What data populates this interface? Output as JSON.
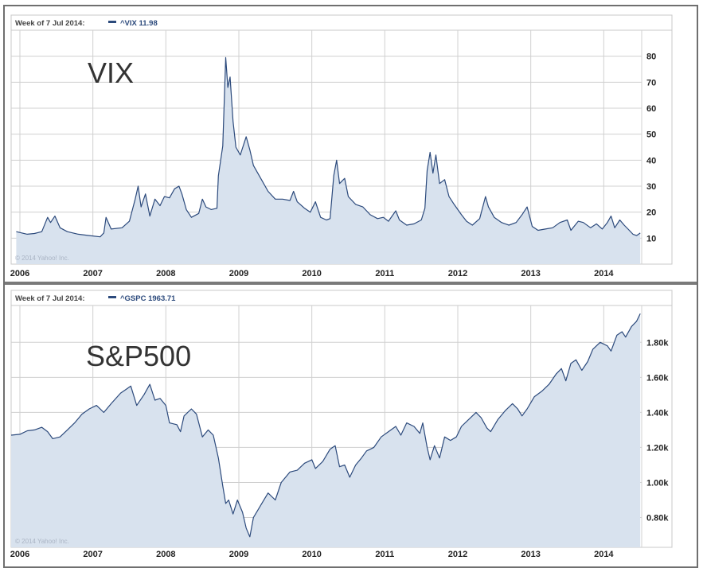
{
  "charts": [
    {
      "header_week": "Week of 7 Jul 2014:",
      "header_series": "^VIX 11.98",
      "overlay_label": "VIX",
      "copyright": "© 2014 Yahoo! Inc.",
      "x_labels": [
        "2006",
        "2007",
        "2008",
        "2009",
        "2010",
        "2011",
        "2012",
        "2013",
        "2014"
      ],
      "y_labels": [
        "80",
        "70",
        "60",
        "50",
        "40",
        "30",
        "20",
        "10"
      ]
    },
    {
      "header_week": "Week of 7 Jul 2014:",
      "header_series": "^GSPC 1963.71",
      "overlay_label": "S&P500",
      "copyright": "© 2014 Yahoo! Inc.",
      "x_labels": [
        "2006",
        "2007",
        "2008",
        "2009",
        "2010",
        "2011",
        "2012",
        "2013",
        "2014"
      ],
      "y_labels": [
        "1.80k",
        "1.60k",
        "1.40k",
        "1.20k",
        "1.00k",
        "0.80k"
      ]
    }
  ],
  "colors": {
    "line": "#2c4a7c",
    "fill": "#d8e2ee",
    "grid": "#d0d0d0"
  },
  "chart_data": [
    {
      "type": "area",
      "title": "",
      "series": [
        {
          "name": "^VIX",
          "values": [
            [
              2005.95,
              12.5
            ],
            [
              2006.1,
              11.5
            ],
            [
              2006.2,
              11.8
            ],
            [
              2006.3,
              12.5
            ],
            [
              2006.38,
              18
            ],
            [
              2006.42,
              16
            ],
            [
              2006.48,
              18.5
            ],
            [
              2006.55,
              14
            ],
            [
              2006.65,
              12.5
            ],
            [
              2006.8,
              11.5
            ],
            [
              2006.95,
              11
            ],
            [
              2007.1,
              10.5
            ],
            [
              2007.15,
              12
            ],
            [
              2007.18,
              18
            ],
            [
              2007.25,
              13.5
            ],
            [
              2007.4,
              14
            ],
            [
              2007.5,
              16.5
            ],
            [
              2007.58,
              25
            ],
            [
              2007.62,
              30
            ],
            [
              2007.66,
              22
            ],
            [
              2007.72,
              27
            ],
            [
              2007.78,
              18.5
            ],
            [
              2007.85,
              25
            ],
            [
              2007.92,
              22.5
            ],
            [
              2007.98,
              26
            ],
            [
              2008.05,
              25.5
            ],
            [
              2008.12,
              29
            ],
            [
              2008.18,
              30
            ],
            [
              2008.22,
              27
            ],
            [
              2008.28,
              21
            ],
            [
              2008.35,
              18
            ],
            [
              2008.45,
              19.5
            ],
            [
              2008.5,
              25
            ],
            [
              2008.55,
              22
            ],
            [
              2008.62,
              21
            ],
            [
              2008.7,
              21.5
            ],
            [
              2008.72,
              34
            ],
            [
              2008.78,
              45.5
            ],
            [
              2008.82,
              79.5
            ],
            [
              2008.85,
              68
            ],
            [
              2008.88,
              72
            ],
            [
              2008.92,
              55
            ],
            [
              2008.96,
              45
            ],
            [
              2009.02,
              42
            ],
            [
              2009.1,
              49
            ],
            [
              2009.15,
              44
            ],
            [
              2009.2,
              38
            ],
            [
              2009.3,
              33
            ],
            [
              2009.4,
              28
            ],
            [
              2009.5,
              25
            ],
            [
              2009.6,
              25
            ],
            [
              2009.7,
              24.5
            ],
            [
              2009.75,
              28
            ],
            [
              2009.8,
              24
            ],
            [
              2009.9,
              21.5
            ],
            [
              2009.98,
              20
            ],
            [
              2010.05,
              24
            ],
            [
              2010.12,
              18
            ],
            [
              2010.2,
              17
            ],
            [
              2010.25,
              17.5
            ],
            [
              2010.3,
              34
            ],
            [
              2010.34,
              40
            ],
            [
              2010.38,
              31
            ],
            [
              2010.45,
              33
            ],
            [
              2010.5,
              26
            ],
            [
              2010.6,
              23
            ],
            [
              2010.7,
              22
            ],
            [
              2010.8,
              19
            ],
            [
              2010.9,
              17.5
            ],
            [
              2010.98,
              18
            ],
            [
              2011.05,
              16.5
            ],
            [
              2011.15,
              20.5
            ],
            [
              2011.2,
              17
            ],
            [
              2011.3,
              15
            ],
            [
              2011.4,
              15.5
            ],
            [
              2011.5,
              17
            ],
            [
              2011.55,
              21.5
            ],
            [
              2011.58,
              36
            ],
            [
              2011.62,
              43
            ],
            [
              2011.66,
              35
            ],
            [
              2011.7,
              42
            ],
            [
              2011.75,
              31
            ],
            [
              2011.82,
              32.5
            ],
            [
              2011.88,
              26
            ],
            [
              2011.95,
              23
            ],
            [
              2012.05,
              19
            ],
            [
              2012.12,
              16.5
            ],
            [
              2012.2,
              15
            ],
            [
              2012.3,
              17.5
            ],
            [
              2012.38,
              26
            ],
            [
              2012.42,
              22
            ],
            [
              2012.5,
              18
            ],
            [
              2012.6,
              16
            ],
            [
              2012.7,
              15
            ],
            [
              2012.8,
              16
            ],
            [
              2012.88,
              19
            ],
            [
              2012.95,
              22
            ],
            [
              2013.02,
              14.5
            ],
            [
              2013.1,
              13
            ],
            [
              2013.2,
              13.5
            ],
            [
              2013.3,
              14
            ],
            [
              2013.4,
              16
            ],
            [
              2013.5,
              17
            ],
            [
              2013.55,
              13
            ],
            [
              2013.65,
              16.5
            ],
            [
              2013.72,
              16
            ],
            [
              2013.82,
              14
            ],
            [
              2013.9,
              15.5
            ],
            [
              2013.98,
              13.5
            ],
            [
              2014.05,
              16
            ],
            [
              2014.1,
              18.5
            ],
            [
              2014.15,
              14
            ],
            [
              2014.22,
              17
            ],
            [
              2014.28,
              15
            ],
            [
              2014.35,
              13
            ],
            [
              2014.4,
              11.5
            ],
            [
              2014.45,
              11
            ],
            [
              2014.5,
              11.98
            ]
          ]
        }
      ],
      "xlim": [
        2005.88,
        2014.52
      ],
      "ylim": [
        0,
        90
      ],
      "ylabel": "",
      "grid": true
    },
    {
      "type": "area",
      "title": "",
      "series": [
        {
          "name": "^GSPC",
          "values": [
            [
              2005.88,
              1270
            ],
            [
              2006.0,
              1275
            ],
            [
              2006.1,
              1295
            ],
            [
              2006.2,
              1300
            ],
            [
              2006.3,
              1315
            ],
            [
              2006.38,
              1290
            ],
            [
              2006.45,
              1250
            ],
            [
              2006.55,
              1260
            ],
            [
              2006.65,
              1300
            ],
            [
              2006.75,
              1340
            ],
            [
              2006.85,
              1390
            ],
            [
              2006.95,
              1420
            ],
            [
              2007.05,
              1440
            ],
            [
              2007.15,
              1400
            ],
            [
              2007.25,
              1450
            ],
            [
              2007.38,
              1510
            ],
            [
              2007.45,
              1530
            ],
            [
              2007.52,
              1550
            ],
            [
              2007.6,
              1440
            ],
            [
              2007.7,
              1500
            ],
            [
              2007.78,
              1560
            ],
            [
              2007.85,
              1470
            ],
            [
              2007.92,
              1480
            ],
            [
              2008.0,
              1440
            ],
            [
              2008.05,
              1340
            ],
            [
              2008.15,
              1330
            ],
            [
              2008.2,
              1290
            ],
            [
              2008.25,
              1380
            ],
            [
              2008.35,
              1420
            ],
            [
              2008.42,
              1390
            ],
            [
              2008.5,
              1260
            ],
            [
              2008.58,
              1300
            ],
            [
              2008.65,
              1270
            ],
            [
              2008.72,
              1140
            ],
            [
              2008.78,
              980
            ],
            [
              2008.82,
              880
            ],
            [
              2008.86,
              900
            ],
            [
              2008.92,
              820
            ],
            [
              2008.98,
              900
            ],
            [
              2009.05,
              830
            ],
            [
              2009.1,
              740
            ],
            [
              2009.15,
              690
            ],
            [
              2009.2,
              800
            ],
            [
              2009.3,
              870
            ],
            [
              2009.4,
              940
            ],
            [
              2009.5,
              900
            ],
            [
              2009.58,
              1000
            ],
            [
              2009.7,
              1060
            ],
            [
              2009.8,
              1070
            ],
            [
              2009.9,
              1110
            ],
            [
              2010.0,
              1130
            ],
            [
              2010.05,
              1080
            ],
            [
              2010.15,
              1120
            ],
            [
              2010.25,
              1190
            ],
            [
              2010.32,
              1210
            ],
            [
              2010.38,
              1090
            ],
            [
              2010.45,
              1100
            ],
            [
              2010.52,
              1030
            ],
            [
              2010.6,
              1100
            ],
            [
              2010.68,
              1140
            ],
            [
              2010.75,
              1180
            ],
            [
              2010.85,
              1200
            ],
            [
              2010.95,
              1260
            ],
            [
              2011.05,
              1290
            ],
            [
              2011.15,
              1320
            ],
            [
              2011.22,
              1270
            ],
            [
              2011.3,
              1340
            ],
            [
              2011.4,
              1320
            ],
            [
              2011.48,
              1280
            ],
            [
              2011.52,
              1340
            ],
            [
              2011.58,
              1200
            ],
            [
              2011.62,
              1130
            ],
            [
              2011.68,
              1210
            ],
            [
              2011.75,
              1140
            ],
            [
              2011.82,
              1260
            ],
            [
              2011.9,
              1240
            ],
            [
              2011.98,
              1260
            ],
            [
              2012.05,
              1320
            ],
            [
              2012.15,
              1360
            ],
            [
              2012.25,
              1400
            ],
            [
              2012.32,
              1370
            ],
            [
              2012.4,
              1310
            ],
            [
              2012.45,
              1290
            ],
            [
              2012.55,
              1360
            ],
            [
              2012.65,
              1410
            ],
            [
              2012.75,
              1450
            ],
            [
              2012.82,
              1420
            ],
            [
              2012.88,
              1380
            ],
            [
              2012.95,
              1420
            ],
            [
              2013.05,
              1490
            ],
            [
              2013.15,
              1520
            ],
            [
              2013.25,
              1560
            ],
            [
              2013.35,
              1620
            ],
            [
              2013.42,
              1650
            ],
            [
              2013.48,
              1580
            ],
            [
              2013.55,
              1680
            ],
            [
              2013.62,
              1700
            ],
            [
              2013.7,
              1640
            ],
            [
              2013.78,
              1690
            ],
            [
              2013.85,
              1760
            ],
            [
              2013.95,
              1800
            ],
            [
              2014.05,
              1780
            ],
            [
              2014.1,
              1750
            ],
            [
              2014.18,
              1840
            ],
            [
              2014.25,
              1860
            ],
            [
              2014.3,
              1830
            ],
            [
              2014.38,
              1890
            ],
            [
              2014.45,
              1920
            ],
            [
              2014.5,
              1963.71
            ]
          ]
        }
      ],
      "xlim": [
        2005.88,
        2014.52
      ],
      "ylim": [
        630,
        2010
      ],
      "ylabel": "",
      "grid": true
    }
  ]
}
